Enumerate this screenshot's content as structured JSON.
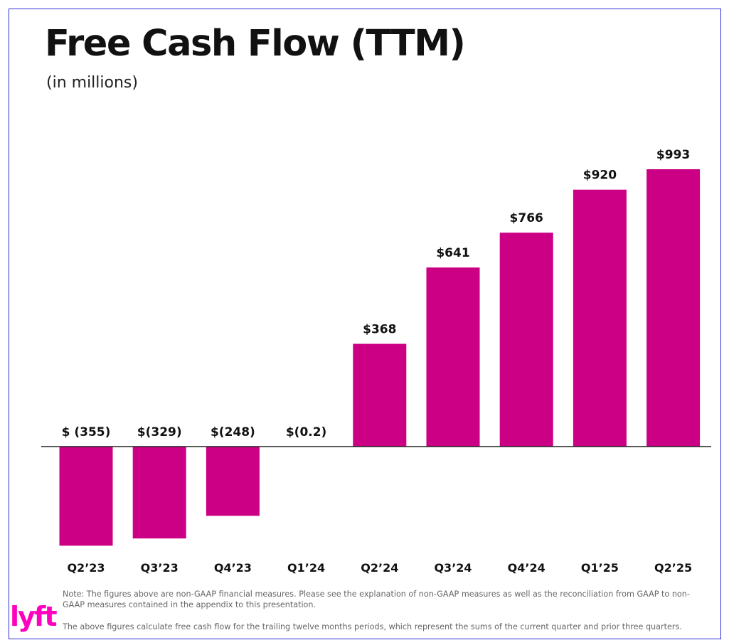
{
  "header": {
    "title": "Free Cash Flow (TTM)",
    "subtitle": "(in millions)"
  },
  "chart_data": {
    "type": "bar",
    "title": "Free Cash Flow (TTM)",
    "subtitle": "(in millions)",
    "categories": [
      "Q2’23",
      "Q3’23",
      "Q4’23",
      "Q1’24",
      "Q2’24",
      "Q3’24",
      "Q4’24",
      "Q1’25",
      "Q2’25"
    ],
    "values": [
      -355,
      -329,
      -248,
      -0.2,
      368,
      641,
      766,
      920,
      993
    ],
    "data_labels": [
      "$ (355)",
      "$(329)",
      "$(248)",
      "$(0.2)",
      "$368",
      "$641",
      "$766",
      "$920",
      "$993"
    ],
    "ylim": [
      -355,
      993
    ],
    "grid": false,
    "legend": "none",
    "bar_color": "#cc0085",
    "axis_color": "#222222"
  },
  "notes": {
    "note": "Note: The figures above are non-GAAP financial measures. Please see the explanation of non-GAAP measures as well as the reconciliation from GAAP to non-GAAP measures contained in the appendix to this presentation.",
    "footnote": "The above figures calculate free cash flow for the trailing twelve months periods, which represent the sums of the current quarter and prior three quarters."
  },
  "logo": {
    "text": "lyft",
    "color": "#ff00bf"
  }
}
